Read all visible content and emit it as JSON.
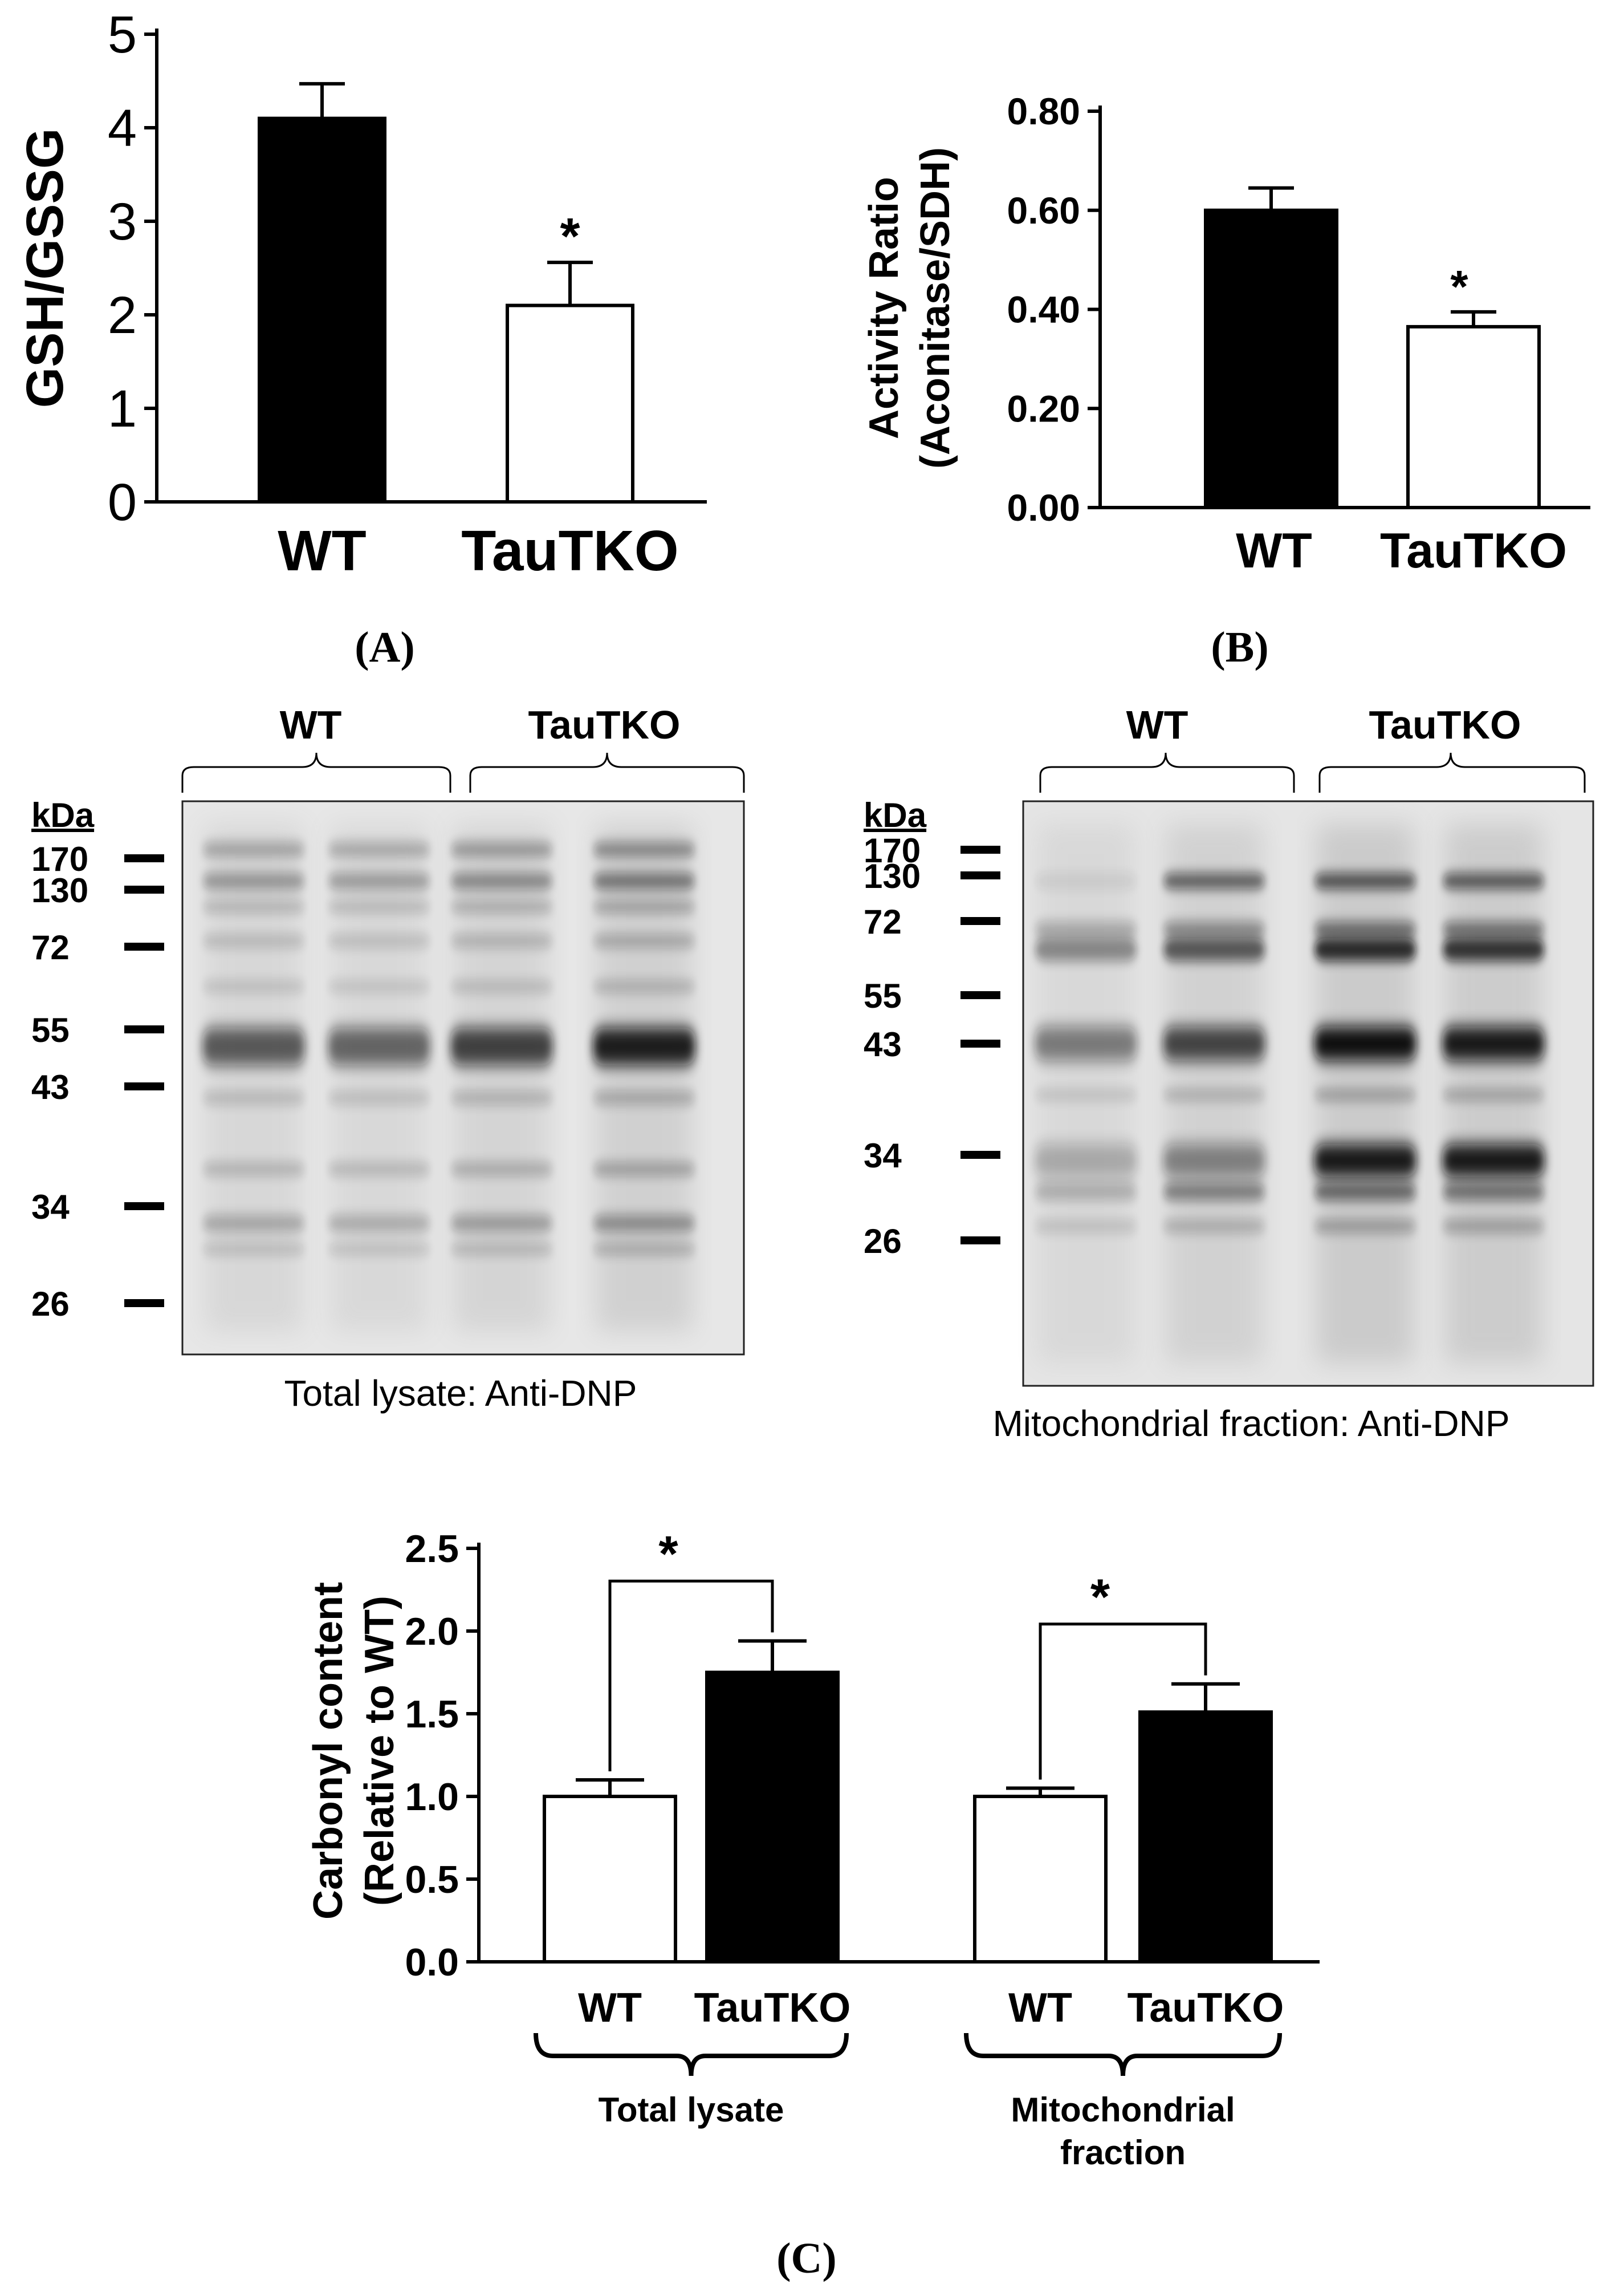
{
  "panel_labels": {
    "a": "(A)",
    "b": "(B)",
    "c": "(C)"
  },
  "chart_data": [
    {
      "type": "bar",
      "panel": "A",
      "ylabel": "GSH/GSSG",
      "categories": [
        "WT",
        "TauTKO"
      ],
      "values": [
        4.1,
        2.1
      ],
      "errors": [
        0.37,
        0.46
      ],
      "bar_colors": [
        "#000000",
        "#ffffff"
      ],
      "significance": [
        "",
        "*"
      ],
      "yticks": [
        "0",
        "1",
        "2",
        "3",
        "4",
        "5"
      ],
      "ylim": [
        0,
        5
      ]
    },
    {
      "type": "bar",
      "panel": "B",
      "ylabel": "Activity Ratio",
      "ylabel2": "(Aconitase/SDH)",
      "categories": [
        "WT",
        "TauTKO"
      ],
      "values": [
        0.6,
        0.365
      ],
      "errors": [
        0.045,
        0.03
      ],
      "bar_colors": [
        "#000000",
        "#ffffff"
      ],
      "significance": [
        "",
        "*"
      ],
      "yticks": [
        "0.00",
        "0.20",
        "0.40",
        "0.60",
        "0.80"
      ],
      "ylim": [
        0,
        0.8
      ]
    },
    {
      "type": "bar",
      "panel": "C",
      "ylabel": "Carbonyl content",
      "ylabel2": "(Relative to WT)",
      "groups": [
        {
          "label": "Total lysate",
          "categories": [
            "WT",
            "TauTKO"
          ],
          "values": [
            1.0,
            1.75
          ],
          "errors": [
            0.1,
            0.19
          ],
          "significance": "*"
        },
        {
          "label": "Mitochondrial\nfraction",
          "categories": [
            "WT",
            "TauTKO"
          ],
          "values": [
            1.0,
            1.51
          ],
          "errors": [
            0.05,
            0.17
          ],
          "significance": "*"
        }
      ],
      "bar_colors": [
        "#ffffff",
        "#000000"
      ],
      "yticks": [
        "0.0",
        "0.5",
        "1.0",
        "1.5",
        "2.0",
        "2.5"
      ],
      "ylim": [
        0,
        2.5
      ]
    }
  ],
  "blots": [
    {
      "id": "total",
      "caption": "Total lysate: Anti-DNP",
      "groups": [
        "WT",
        "TauTKO"
      ],
      "marker_unit": "kDa",
      "markers": [
        "170",
        "130",
        "72",
        "55",
        "43",
        "34",
        "26"
      ],
      "lane_intensity": [
        0.55,
        0.5,
        0.65,
        0.8
      ]
    },
    {
      "id": "mito",
      "caption": "Mitochondrial fraction: Anti-DNP",
      "groups": [
        "WT",
        "TauTKO"
      ],
      "marker_unit": "kDa",
      "markers": [
        "170",
        "130",
        "72",
        "55",
        "43",
        "34",
        "26"
      ],
      "lane_intensity": [
        0.45,
        0.7,
        0.95,
        0.9
      ]
    }
  ]
}
